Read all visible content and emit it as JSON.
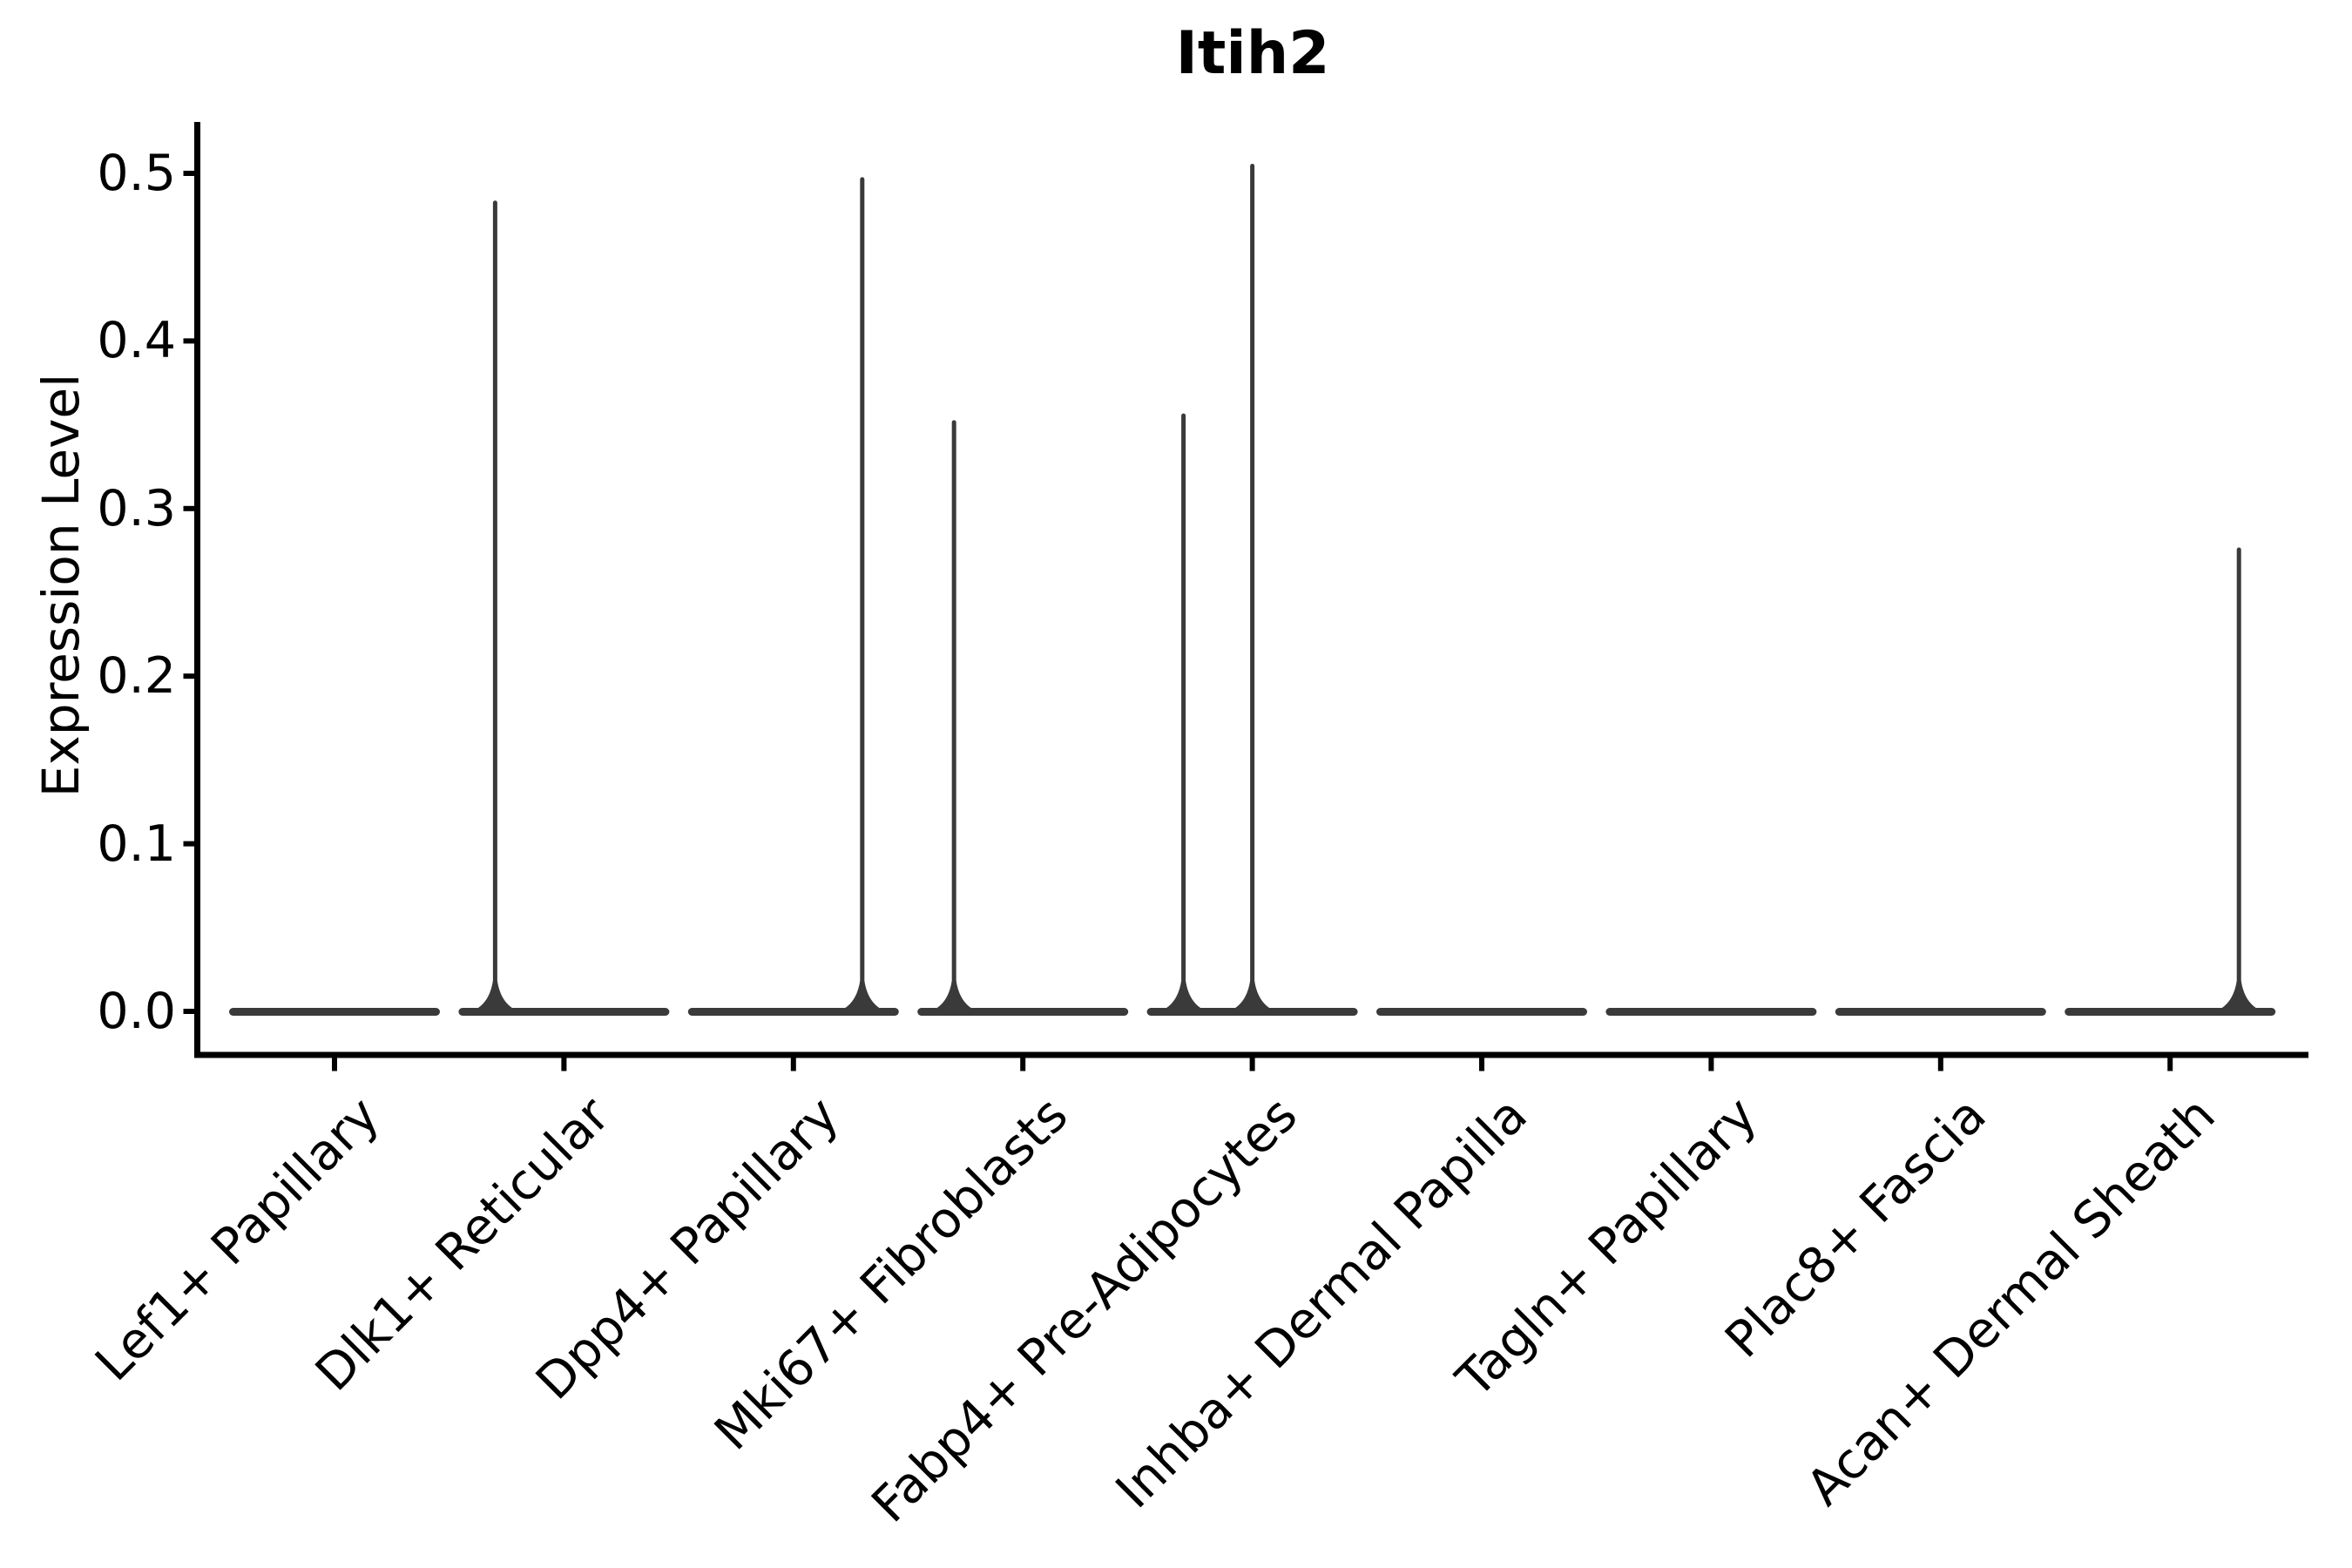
{
  "figure": {
    "background": "#ffffff",
    "ink_color": "#000000",
    "violin_stroke_color": "#3a3a3a"
  },
  "chart_data": {
    "type": "violin",
    "title": "Itih2",
    "xlabel": "",
    "ylabel": "Expression Level",
    "grid": false,
    "legend": "none",
    "x_tick_rotation_deg": 45,
    "ylim": [
      -0.03,
      0.53
    ],
    "yticks": [
      0.0,
      0.1,
      0.2,
      0.3,
      0.4,
      0.5
    ],
    "ytick_labels": [
      "0.0",
      "0.1",
      "0.2",
      "0.3",
      "0.4",
      "0.5"
    ],
    "categories": [
      "Lef1+ Papillary",
      "Dlk1+ Reticular",
      "Dpp4+ Papillary",
      "Mki67+ Fibroblasts",
      "Fabp4+ Pre-Adipocytes",
      "Inhba+ Dermal Papilla",
      "Tagln+ Papillary",
      "Plac8+ Fascia",
      "Acan+ Dermal Sheath"
    ],
    "violins": [
      {
        "category": "Lef1+ Papillary",
        "zero_density_bar": true,
        "peaks": []
      },
      {
        "category": "Dlk1+ Reticular",
        "zero_density_bar": true,
        "peaks": [
          {
            "value": 0.484,
            "x_offset": -0.3
          }
        ]
      },
      {
        "category": "Dpp4+ Papillary",
        "zero_density_bar": true,
        "peaks": [
          {
            "value": 0.498,
            "x_offset": 0.3
          }
        ]
      },
      {
        "category": "Mki67+ Fibroblasts",
        "zero_density_bar": true,
        "peaks": [
          {
            "value": 0.353,
            "x_offset": -0.3
          }
        ]
      },
      {
        "category": "Fabp4+ Pre-Adipocytes",
        "zero_density_bar": true,
        "peaks": [
          {
            "value": 0.357,
            "x_offset": -0.3
          },
          {
            "value": 0.506,
            "x_offset": 0.0
          }
        ]
      },
      {
        "category": "Inhba+ Dermal Papilla",
        "zero_density_bar": true,
        "peaks": []
      },
      {
        "category": "Tagln+ Papillary",
        "zero_density_bar": true,
        "peaks": []
      },
      {
        "category": "Plac8+ Fascia",
        "zero_density_bar": true,
        "peaks": []
      },
      {
        "category": "Acan+ Dermal Sheath",
        "zero_density_bar": true,
        "peaks": [
          {
            "value": 0.277,
            "x_offset": 0.3
          }
        ]
      }
    ]
  }
}
